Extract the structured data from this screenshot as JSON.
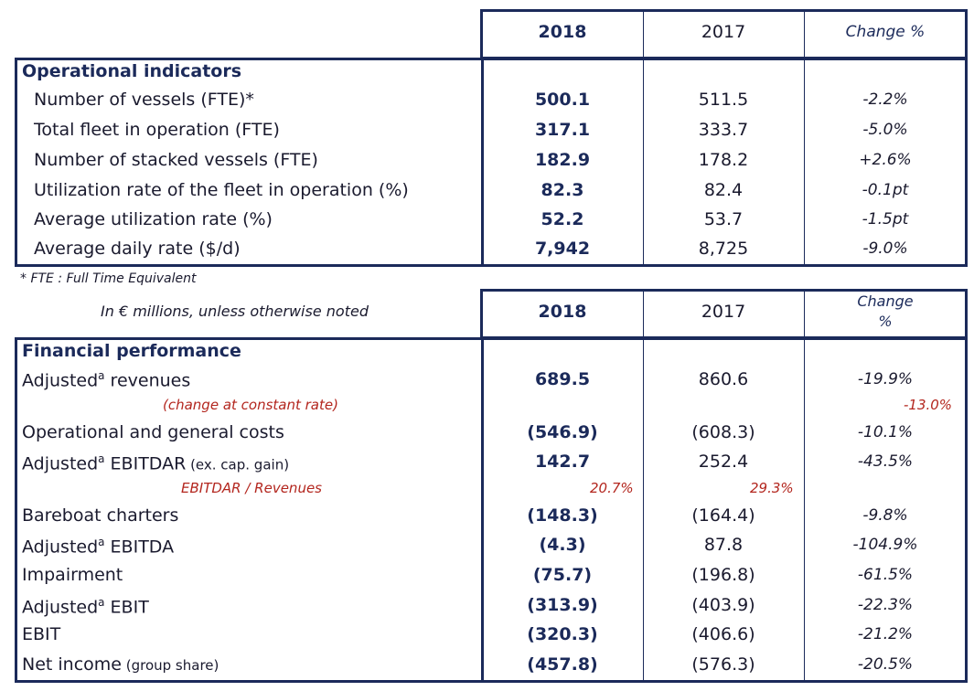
{
  "header1": {
    "col2018": "2018",
    "col2017": "2017",
    "colChange": "Change %"
  },
  "operational": {
    "title": "Operational indicators",
    "rows": [
      {
        "label": "Number of vessels (FTE)*",
        "v2018": "500.1",
        "v2017": "511.5",
        "change": "-2.2%"
      },
      {
        "label": "Total fleet in operation (FTE)",
        "v2018": "317.1",
        "v2017": "333.7",
        "change": "-5.0%"
      },
      {
        "label": "Number of stacked vessels (FTE)",
        "v2018": "182.9",
        "v2017": "178.2",
        "change": "+2.6%"
      },
      {
        "label": "Utilization rate of the fleet in operation (%)",
        "v2018": "82.3",
        "v2017": "82.4",
        "change": "-0.1pt"
      },
      {
        "label": "Average utilization rate (%)",
        "v2018": "52.2",
        "v2017": "53.7",
        "change": "-1.5pt"
      },
      {
        "label": "Average daily rate ($/d)",
        "v2018": "7,942",
        "v2017": "8,725",
        "change": "-9.0%"
      }
    ],
    "footnote": "* FTE : Full Time Equivalent"
  },
  "header2": {
    "note": "In € millions, unless otherwise noted",
    "col2018": "2018",
    "col2017": "2017",
    "colChange1": "Change",
    "colChange2": "%"
  },
  "financial": {
    "title": "Financial performance",
    "sup": "a",
    "revenues": {
      "label_pre": "Adjusted",
      "label_post": " revenues",
      "v2018": "689.5",
      "v2017": "860.6",
      "change": "-19.9%"
    },
    "constant_rate": {
      "label": "(change at constant rate)",
      "change": "-13.0%"
    },
    "opcosts": {
      "label": "Operational and general costs",
      "v2018": "(546.9)",
      "v2017": "(608.3)",
      "change": "-10.1%"
    },
    "ebitdar": {
      "label_pre": "Adjusted",
      "label_mid": " EBITDAR",
      "label_small": " (ex. cap. gain)",
      "v2018": "142.7",
      "v2017": "252.4",
      "change": "-43.5%"
    },
    "ebitdar_ratio": {
      "label": "EBITDAR / Revenues",
      "v2018": "20.7%",
      "v2017": "29.3%"
    },
    "bareboat": {
      "label": "Bareboat charters",
      "v2018": "(148.3)",
      "v2017": "(164.4)",
      "change": "-9.8%"
    },
    "ebitda": {
      "label_pre": "Adjusted",
      "label_post": " EBITDA",
      "v2018": "(4.3)",
      "v2017": "87.8",
      "change": "-104.9%"
    },
    "impairment": {
      "label": "Impairment",
      "v2018": "(75.7)",
      "v2017": "(196.8)",
      "change": "-61.5%"
    },
    "adj_ebit": {
      "label_pre": "Adjusted",
      "label_post": " EBIT",
      "v2018": "(313.9)",
      "v2017": "(403.9)",
      "change": "-22.3%"
    },
    "ebit": {
      "label": "EBIT",
      "v2018": "(320.3)",
      "v2017": "(406.6)",
      "change": "-21.2%"
    },
    "net_income": {
      "label_main": "Net income",
      "label_small": " (group share)",
      "v2018": "(457.8)",
      "v2017": "(576.3)",
      "change": "-20.5%"
    }
  },
  "colors": {
    "navy": "#1b2a5a",
    "red": "#b3261e"
  }
}
